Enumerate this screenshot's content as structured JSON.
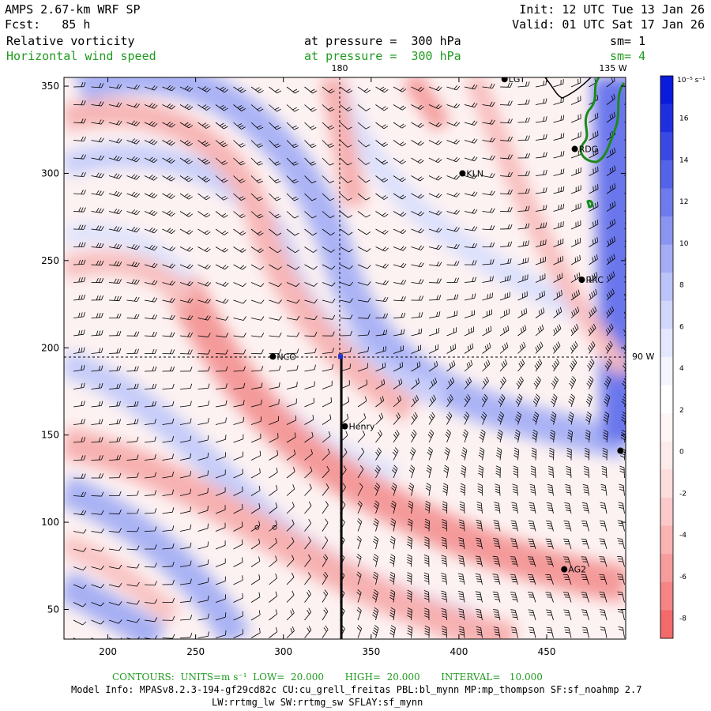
{
  "header": {
    "model": "AMPS 2.67-km WRF SP",
    "fcst": "Fcst:   85 h",
    "init": "Init: 12 UTC Tue 13 Jan 26",
    "valid": "Valid: 01 UTC Sat 17 Jan 26",
    "field1": "Relative vorticity",
    "field2": "Horizontal wind speed",
    "pressure1": "at pressure =  300 hPa",
    "pressure2": "at pressure =  300 hPa",
    "sm1": "sm= 1",
    "sm2": "sm= 4"
  },
  "colors": {
    "accent_green": "#1f9a1f",
    "colorbar": [
      "#f26a6a",
      "#f58585",
      "#f79c9c",
      "#f9b3b3",
      "#fbc9c9",
      "#fcdcdc",
      "#fdeaea",
      "#fef5f5",
      "#ffffff",
      "#f3f4fe",
      "#e4e7fd",
      "#d2d6fb",
      "#bcc3f8",
      "#a4acf5",
      "#8a95f1",
      "#6f7bed",
      "#5563e9",
      "#3a49e4",
      "#1f2fe0",
      "#0a1bdc"
    ]
  },
  "chart_data": {
    "type": "heatmap",
    "title": "Relative vorticity / Horizontal wind speed at 300 hPa",
    "x_ticks": [
      "200",
      "250",
      "300",
      "350",
      "400",
      "450"
    ],
    "y_ticks": [
      "50",
      "100",
      "150",
      "200",
      "250",
      "300",
      "350"
    ],
    "xlim": [
      175,
      495
    ],
    "ylim": [
      33,
      355
    ],
    "colorbar": {
      "unit": "10⁻⁵ s⁻¹",
      "ticks": [
        "16",
        "14",
        "12",
        "10",
        "8",
        "6",
        "4",
        "2",
        "0",
        "-2",
        "-4",
        "-6",
        "-8"
      ]
    },
    "meridian_label": "180",
    "meridian_135w": "135 W",
    "parallel_label": "90 W",
    "stations": [
      {
        "name": "LGT",
        "x": 426,
        "y": 354
      },
      {
        "name": "RDG",
        "x": 466,
        "y": 314
      },
      {
        "name": "KLN",
        "x": 402,
        "y": 300
      },
      {
        "name": "RRC",
        "x": 470,
        "y": 239
      },
      {
        "name": "NCO",
        "x": 294,
        "y": 195
      },
      {
        "name": "Henry",
        "x": 335,
        "y": 155
      },
      {
        "name": "AG2",
        "x": 460,
        "y": 73
      },
      {
        "name": "",
        "x": 492,
        "y": 141
      }
    ],
    "cross_section_x": 333,
    "pole_point": {
      "x": 333,
      "y": 195
    },
    "open_markers": [
      {
        "x": 285,
        "y": 97
      },
      {
        "x": 295,
        "y": 97
      }
    ]
  },
  "footer": {
    "contours_label": "CONTOURS:  UNITS=m s⁻¹  LOW=  20.000       HIGH=  20.000       INTERVAL=   10.000",
    "model_info_1": "Model Info: MPASv8.2.3-194-gf29cd82c CU:cu_grell_freitas PBL:bl_mynn MP:mp_thompson SF:sf_noahmp 2.7",
    "model_info_2": "LW:rrtmg_lw SW:rrtmg_sw SFLAY:sf_mynn"
  }
}
